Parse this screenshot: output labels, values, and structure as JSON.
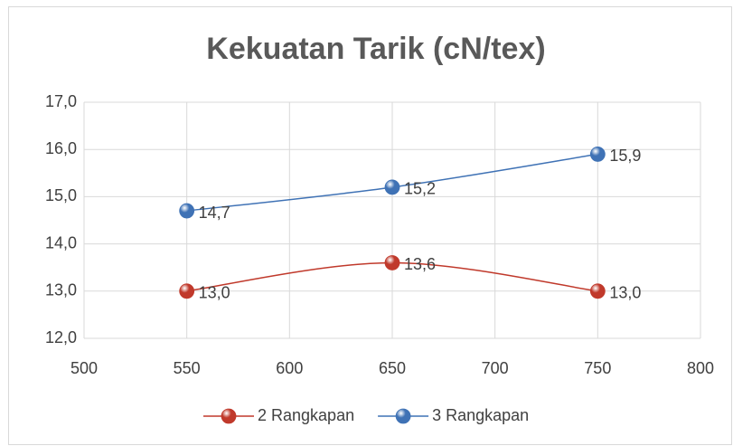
{
  "chart_data": {
    "type": "line",
    "title": "Kekuatan Tarik (cN/tex)",
    "x": [
      550,
      650,
      750
    ],
    "series": [
      {
        "name": "2 Rangkapan",
        "color": "#c0392b",
        "values": [
          13.0,
          13.6,
          13.0
        ],
        "value_labels": [
          "13,0",
          "13,6",
          "13,0"
        ]
      },
      {
        "name": "3 Rangkapan",
        "color": "#3f72b5",
        "values": [
          14.7,
          15.2,
          15.9
        ],
        "value_labels": [
          "14,7",
          "15,2",
          "15,9"
        ]
      }
    ],
    "xlim": [
      500,
      800
    ],
    "xticks": [
      500,
      550,
      600,
      650,
      700,
      750,
      800
    ],
    "ylim": [
      12,
      17
    ],
    "yticks": [
      {
        "value": 12,
        "label": "12,0"
      },
      {
        "value": 13,
        "label": "13,0"
      },
      {
        "value": 14,
        "label": "14,0"
      },
      {
        "value": 15,
        "label": "15,0"
      },
      {
        "value": 16,
        "label": "16,0"
      },
      {
        "value": 17,
        "label": "17,0"
      }
    ],
    "grid": true,
    "legend": "bottom",
    "smooth": true
  }
}
